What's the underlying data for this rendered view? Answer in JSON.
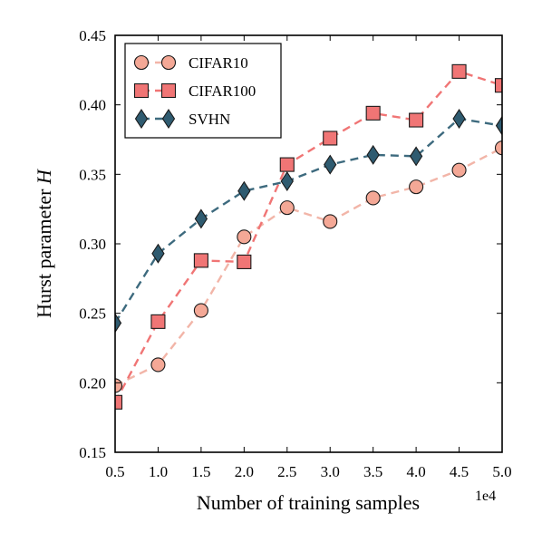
{
  "chart_data": {
    "type": "line",
    "xlabel": "Number of training samples",
    "ylabel_prefix": "Hurst parameter ",
    "ylabel_var": "H",
    "x_offset_label": "1e4",
    "xlim": [
      0.5,
      5.0
    ],
    "ylim": [
      0.15,
      0.45
    ],
    "xticks": [
      0.5,
      1.0,
      1.5,
      2.0,
      2.5,
      3.0,
      3.5,
      4.0,
      4.5,
      5.0
    ],
    "xtick_labels": [
      "0.5",
      "1.0",
      "1.5",
      "2.0",
      "2.5",
      "3.0",
      "3.5",
      "4.0",
      "4.5",
      "5.0"
    ],
    "yticks": [
      0.15,
      0.2,
      0.25,
      0.3,
      0.35,
      0.4,
      0.45
    ],
    "ytick_labels": [
      "0.15",
      "0.20",
      "0.25",
      "0.30",
      "0.35",
      "0.40",
      "0.45"
    ],
    "legend_position": "top-left",
    "grid": false,
    "x": [
      0.5,
      1.0,
      1.5,
      2.0,
      2.5,
      3.0,
      3.5,
      4.0,
      4.5,
      5.0
    ],
    "series": [
      {
        "name": "CIFAR10",
        "marker": "circle",
        "color": "#f4a896",
        "line_color": "#f2b5a8",
        "values": [
          0.198,
          0.213,
          0.252,
          0.305,
          0.326,
          0.316,
          0.333,
          0.341,
          0.353,
          0.369
        ]
      },
      {
        "name": "CIFAR100",
        "marker": "square",
        "color": "#f07575",
        "line_color": "#f07575",
        "values": [
          0.186,
          0.244,
          0.288,
          0.287,
          0.357,
          0.376,
          0.394,
          0.389,
          0.424,
          0.414
        ]
      },
      {
        "name": "SVHN",
        "marker": "diamond",
        "color": "#2f5b70",
        "line_color": "#3d6a7e",
        "values": [
          0.243,
          0.293,
          0.318,
          0.338,
          0.345,
          0.357,
          0.364,
          0.363,
          0.39,
          0.385
        ]
      }
    ]
  }
}
